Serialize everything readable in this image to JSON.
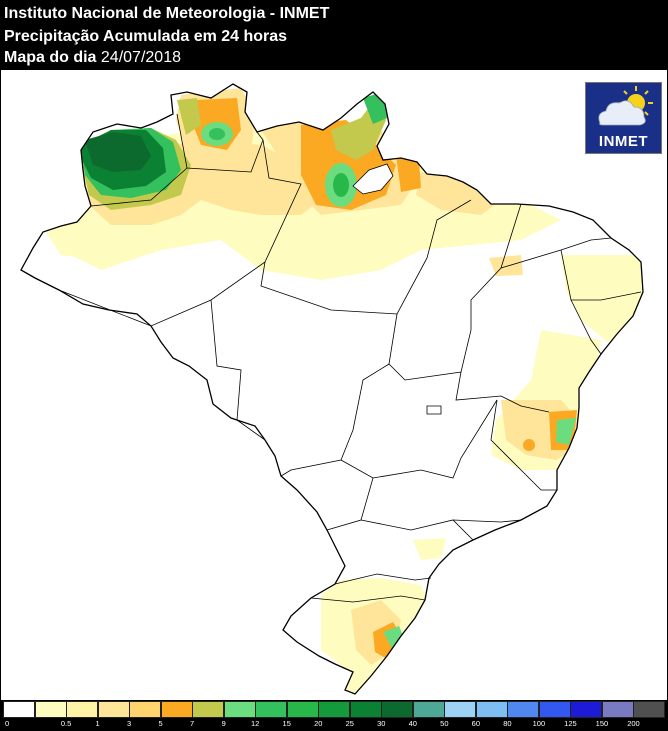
{
  "header": {
    "line1": "Instituto Nacional de Meteorologia - INMET",
    "line2": "Precipitação Acumulada em 24 horas",
    "line3_label": "Mapa do dia",
    "line3_date": "24/07/2018"
  },
  "logo": {
    "text": "INMET",
    "icon": "sun-cloud-rain-icon"
  },
  "legend": {
    "labels": [
      "0",
      "0.5",
      "1",
      "3",
      "5",
      "7",
      "9",
      "12",
      "15",
      "20",
      "25",
      "30",
      "40",
      "50",
      "60",
      "80",
      "100",
      "125",
      "150",
      "200"
    ],
    "colors": [
      "#ffffff",
      "#fffcc0",
      "#fff4a5",
      "#fee59a",
      "#ffd46e",
      "#fba823",
      "#c3c94c",
      "#6bdd7e",
      "#33c05d",
      "#28b84a",
      "#159a3b",
      "#0b8133",
      "#0d6a2f",
      "#4fa895",
      "#9ed2f5",
      "#7fbef3",
      "#5088f0",
      "#3358f0",
      "#1e1bd8",
      "#7a7ac2",
      "#505050"
    ]
  }
}
